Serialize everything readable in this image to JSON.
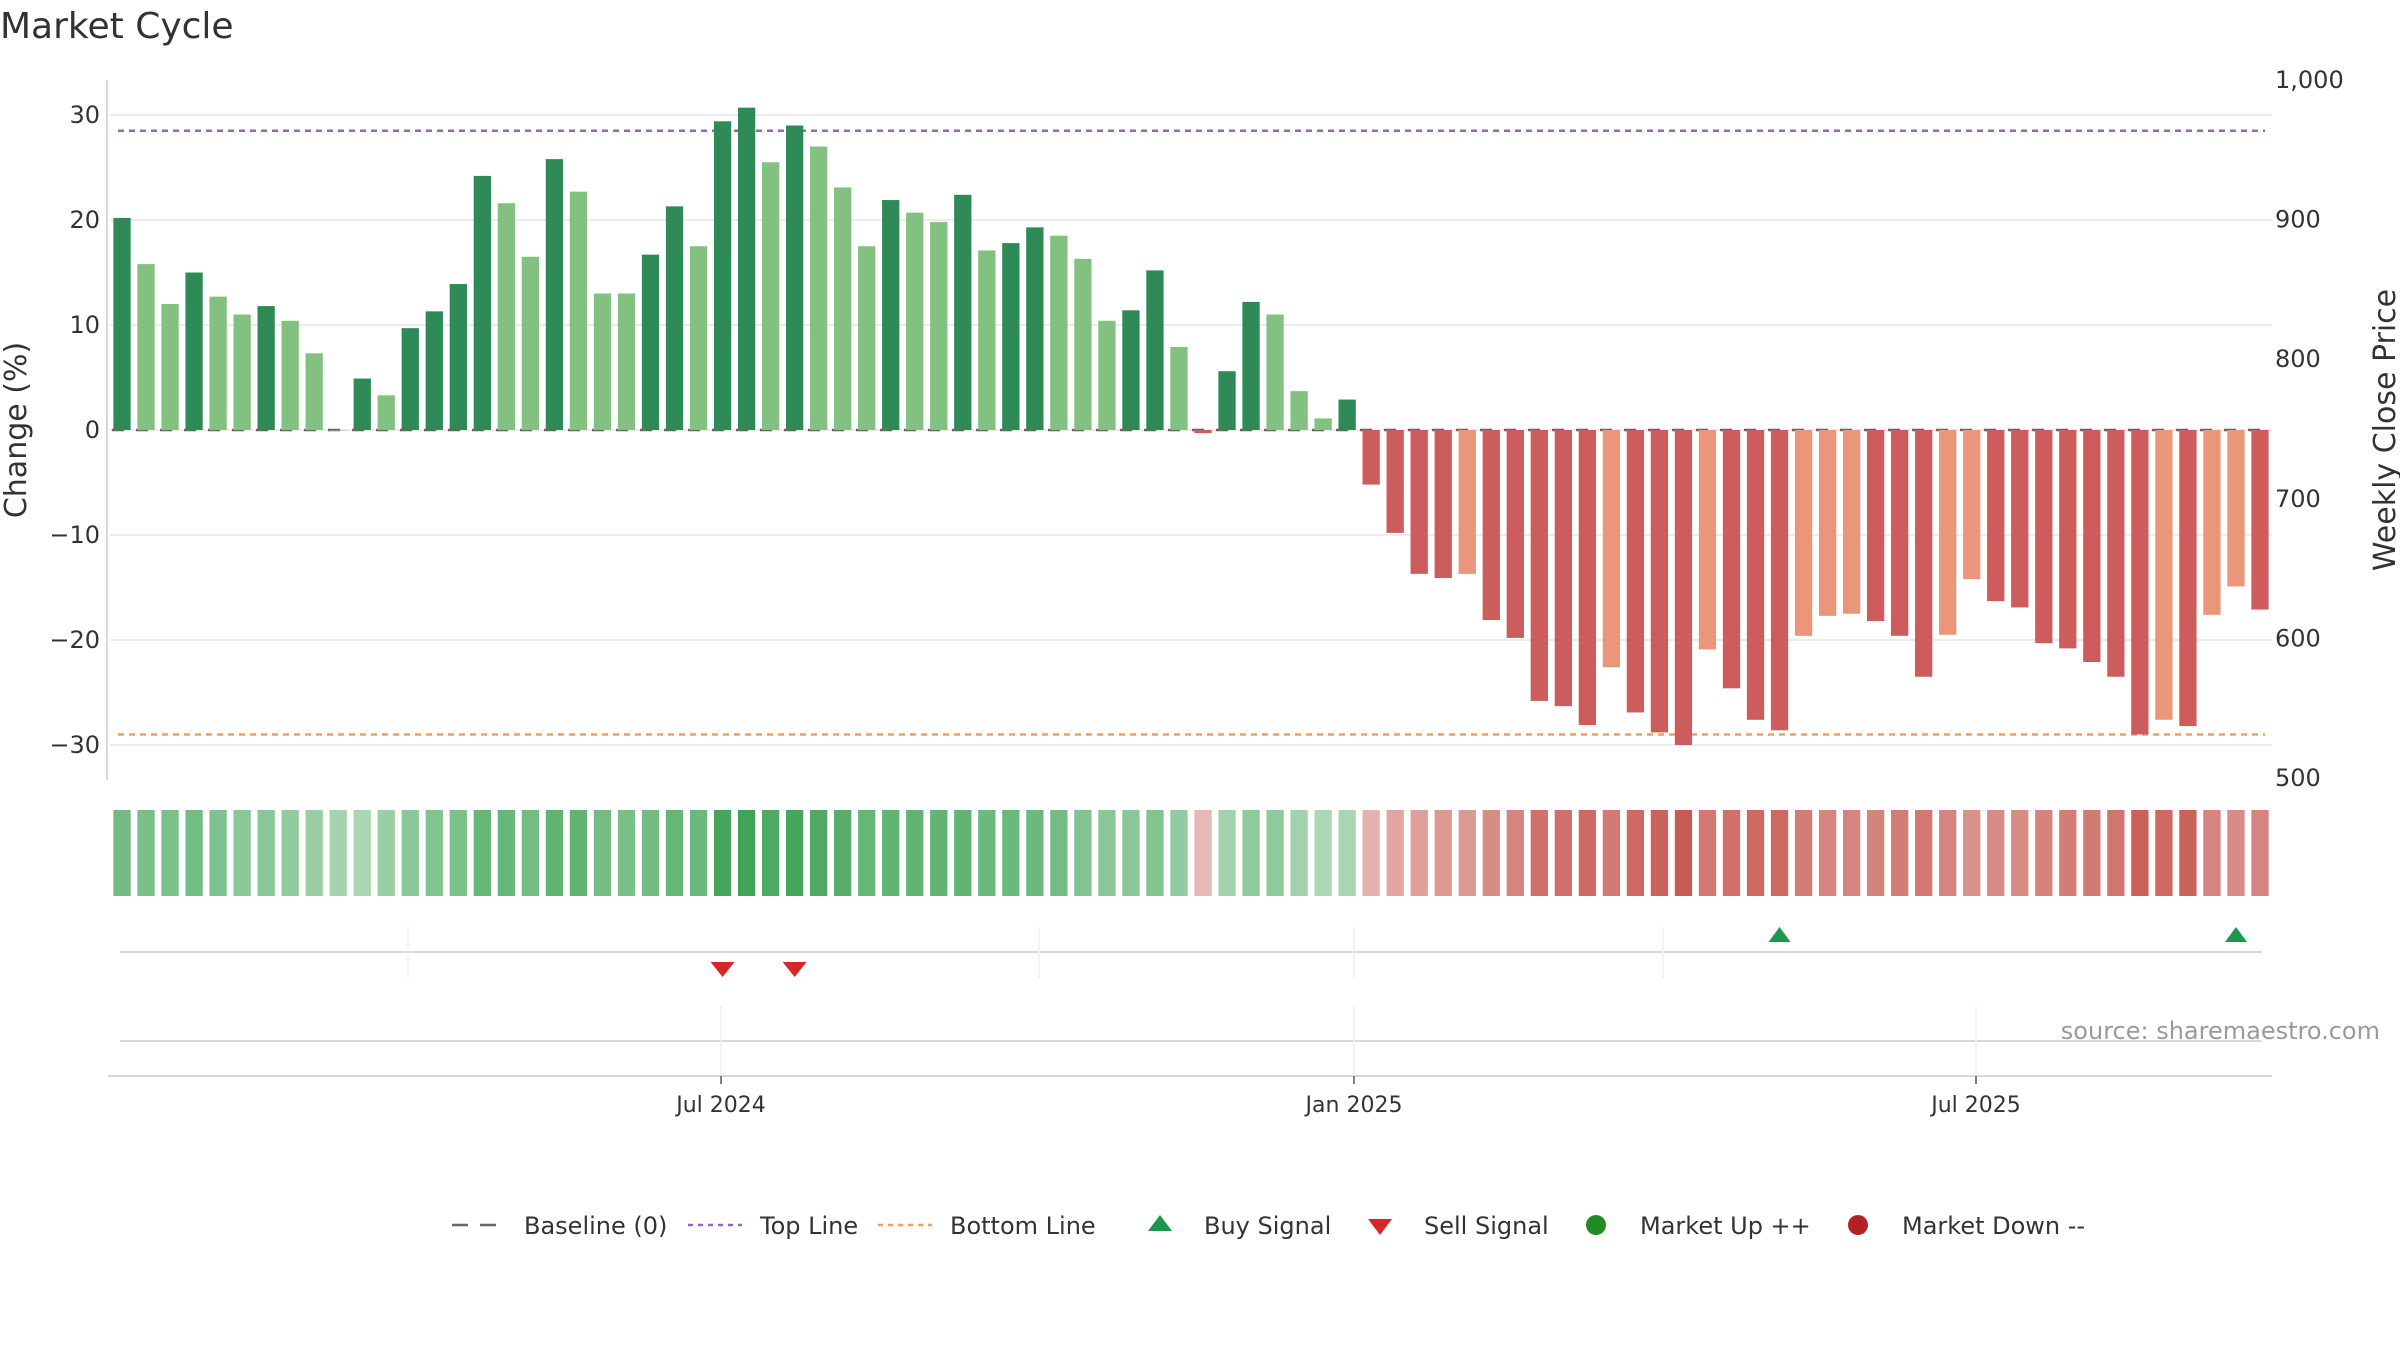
{
  "page": {
    "title": "Market Cycle"
  },
  "colors": {
    "up_dark": "#2e8b57",
    "up_light": "#82c17f",
    "down_dark": "#cd5c5c",
    "down_light": "#e9967a",
    "baseline": "#666666",
    "top_line": "#9467bd",
    "bottom_line": "#f0a060",
    "buy": "#1a9850",
    "sell": "#d62728",
    "market_up": "#228b22",
    "market_down": "#b22222"
  },
  "chart_data": {
    "type": "bar",
    "title": "Market Cycle",
    "ylabel": "Change (%)",
    "y2label": "Weekly Close Price",
    "ylim": [
      -33,
      33
    ],
    "y2lim": [
      500,
      1000
    ],
    "yticks": [
      "30",
      "20",
      "10",
      "0",
      "−10",
      "−20",
      "−30"
    ],
    "y2ticks": [
      "1,000",
      "900",
      "800",
      "700",
      "600",
      "500"
    ],
    "xticks": [
      "Jul 2024",
      "Jan 2025",
      "Jul 2025"
    ],
    "top_line": 28.5,
    "bottom_line": -29,
    "grid": true,
    "values": [
      20.2,
      15.8,
      12.0,
      15.0,
      12.7,
      11.0,
      11.8,
      10.4,
      7.3,
      0,
      4.9,
      3.3,
      9.7,
      11.3,
      13.9,
      24.2,
      21.6,
      16.5,
      25.8,
      22.7,
      13.0,
      13.0,
      16.7,
      21.3,
      17.5,
      29.4,
      30.7,
      25.5,
      29.0,
      27.0,
      23.1,
      17.5,
      21.9,
      20.7,
      19.8,
      22.4,
      17.1,
      17.8,
      19.3,
      18.5,
      16.3,
      10.4,
      11.4,
      15.2,
      7.9,
      -0.3,
      5.6,
      12.2,
      11.0,
      3.7,
      1.1,
      2.9,
      -5.2,
      -9.8,
      -13.7,
      -14.1,
      -13.7,
      -18.1,
      -19.8,
      -25.8,
      -26.3,
      -28.1,
      -22.6,
      -26.9,
      -28.8,
      -30.0,
      -20.9,
      -24.6,
      -27.6,
      -28.6,
      -19.6,
      -17.7,
      -17.5,
      -18.2,
      -19.6,
      -23.5,
      -19.5,
      -14.2,
      -16.3,
      -16.9,
      -20.3,
      -20.8,
      -22.1,
      -23.5,
      -29.0,
      -27.6,
      -28.2,
      -17.6,
      -14.9,
      -17.1
    ],
    "shades": [
      "D",
      "L",
      "L",
      "D",
      "L",
      "L",
      "D",
      "L",
      "L",
      "L",
      "D",
      "L",
      "D",
      "D",
      "D",
      "D",
      "L",
      "L",
      "D",
      "L",
      "L",
      "L",
      "D",
      "D",
      "L",
      "D",
      "D",
      "L",
      "D",
      "L",
      "L",
      "L",
      "D",
      "L",
      "L",
      "D",
      "L",
      "D",
      "D",
      "L",
      "L",
      "L",
      "D",
      "D",
      "L",
      "D",
      "D",
      "D",
      "L",
      "L",
      "L",
      "D",
      "D",
      "D",
      "D",
      "D",
      "L",
      "D",
      "D",
      "D",
      "D",
      "D",
      "L",
      "D",
      "D",
      "D",
      "L",
      "D",
      "D",
      "D",
      "L",
      "L",
      "L",
      "D",
      "D",
      "D",
      "L",
      "L",
      "D",
      "D",
      "D",
      "D",
      "D",
      "D",
      "D",
      "L",
      "D",
      "L",
      "L",
      "D"
    ],
    "heat_strip": [
      0.62,
      0.58,
      0.55,
      0.6,
      0.52,
      0.46,
      0.46,
      0.4,
      0.35,
      0.28,
      0.25,
      0.35,
      0.45,
      0.5,
      0.55,
      0.7,
      0.68,
      0.6,
      0.72,
      0.72,
      0.6,
      0.58,
      0.62,
      0.7,
      0.65,
      0.9,
      0.95,
      0.85,
      0.9,
      0.85,
      0.8,
      0.7,
      0.72,
      0.72,
      0.72,
      0.72,
      0.65,
      0.65,
      0.65,
      0.6,
      0.5,
      0.45,
      0.45,
      0.5,
      0.4,
      0.2,
      0.3,
      0.42,
      0.42,
      0.3,
      0.22,
      0.25,
      0.25,
      0.35,
      0.4,
      0.45,
      0.45,
      0.55,
      0.6,
      0.75,
      0.75,
      0.8,
      0.68,
      0.8,
      0.85,
      0.9,
      0.7,
      0.75,
      0.8,
      0.82,
      0.65,
      0.6,
      0.6,
      0.62,
      0.65,
      0.7,
      0.6,
      0.5,
      0.55,
      0.55,
      0.62,
      0.65,
      0.68,
      0.72,
      0.88,
      0.82,
      0.85,
      0.6,
      0.55,
      0.6
    ],
    "buy_signals": [
      69,
      88
    ],
    "sell_signals": [
      25,
      28
    ]
  },
  "footer": {
    "source": "source: sharemaestro.com"
  },
  "legend": [
    {
      "key": "baseline",
      "label": "Baseline (0)"
    },
    {
      "key": "top",
      "label": "Top Line"
    },
    {
      "key": "bottom",
      "label": "Bottom Line"
    },
    {
      "key": "buy",
      "label": "Buy Signal"
    },
    {
      "key": "sell",
      "label": "Sell Signal"
    },
    {
      "key": "up",
      "label": "Market Up ++"
    },
    {
      "key": "down",
      "label": "Market Down --"
    }
  ]
}
